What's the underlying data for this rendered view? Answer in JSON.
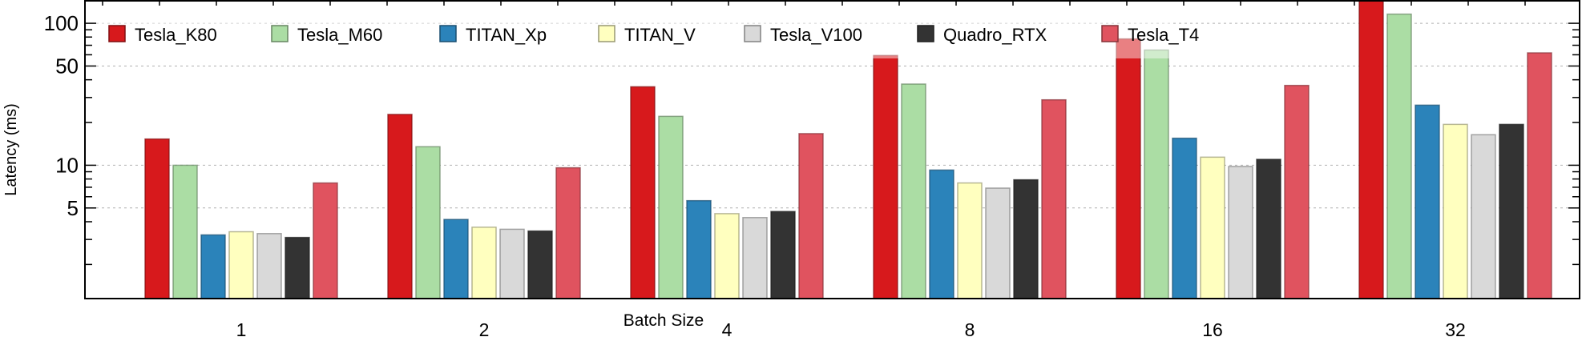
{
  "chart_data": {
    "type": "bar",
    "title": "",
    "xlabel": "Batch Size",
    "ylabel": "Latency (ms)",
    "yscale": "log",
    "ylim": [
      1.15,
      144
    ],
    "yticks": [
      5,
      10,
      50,
      100
    ],
    "grid": "horizontal dotted at major ticks",
    "legend_placement": "top, single row",
    "categories": [
      "1",
      "2",
      "4",
      "8",
      "16",
      "32"
    ],
    "series": [
      {
        "name": "Tesla_K80",
        "color": "#d7191c",
        "values": [
          15.3,
          22.8,
          35.7,
          59.3,
          77.6,
          160
        ]
      },
      {
        "name": "Tesla_M60",
        "color": "#abdda4",
        "values": [
          10.0,
          13.5,
          22.1,
          37.3,
          64.8,
          116
        ]
      },
      {
        "name": "TITAN_Xp",
        "color": "#2b83ba",
        "values": [
          3.23,
          4.15,
          5.63,
          9.25,
          15.5,
          26.5
        ]
      },
      {
        "name": "TITAN_V",
        "color": "#ffffbf",
        "values": [
          3.4,
          3.66,
          4.56,
          7.5,
          11.4,
          19.4
        ]
      },
      {
        "name": "Tesla_V100",
        "color": "#d9d9d9",
        "values": [
          3.3,
          3.54,
          4.28,
          6.9,
          9.8,
          16.4
        ]
      },
      {
        "name": "Quadro_RTX",
        "color": "#333333",
        "values": [
          3.1,
          3.44,
          4.72,
          7.9,
          11.0,
          19.4
        ]
      },
      {
        "name": "Tesla_T4",
        "color": "#e0535f",
        "values": [
          7.5,
          9.6,
          16.7,
          28.9,
          36.5,
          61.9
        ]
      }
    ]
  }
}
